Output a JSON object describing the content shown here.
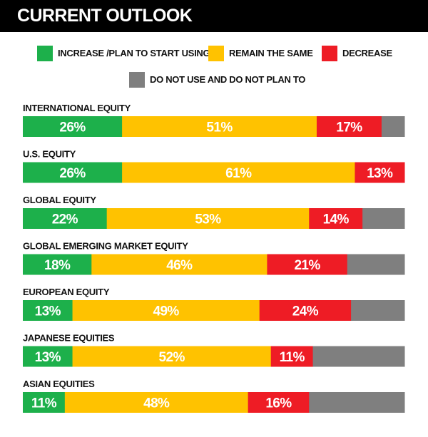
{
  "header": {
    "title": "CURRENT OUTLOOK"
  },
  "legend": [
    {
      "label": "INCREASE /PLAN TO START USING",
      "color": "#1DB04B"
    },
    {
      "label": "REMAIN THE SAME",
      "color": "#FFC200"
    },
    {
      "label": "DECREASE",
      "color": "#EE1C25"
    },
    {
      "label": "DO NOT USE AND DO NOT PLAN TO",
      "color": "#7F7F7F"
    }
  ],
  "chart_data": {
    "type": "bar",
    "orientation": "horizontal",
    "stacked": true,
    "title": "CURRENT OUTLOOK",
    "categories": [
      "INTERNATIONAL EQUITY",
      "U.S. EQUITY",
      "GLOBAL EQUITY",
      "GLOBAL EMERGING MARKET EQUITY",
      "EUROPEAN EQUITY",
      "JAPANESE EQUITIES",
      "ASIAN EQUITIES"
    ],
    "series": [
      {
        "name": "INCREASE /PLAN TO START USING",
        "color": "#1DB04B",
        "values": [
          26,
          26,
          22,
          18,
          13,
          13,
          11
        ]
      },
      {
        "name": "REMAIN THE SAME",
        "color": "#FFC200",
        "values": [
          51,
          61,
          53,
          46,
          49,
          52,
          48
        ]
      },
      {
        "name": "DECREASE",
        "color": "#EE1C25",
        "values": [
          17,
          13,
          14,
          21,
          24,
          11,
          16
        ]
      },
      {
        "name": "DO NOT USE AND DO NOT PLAN TO",
        "color": "#7F7F7F",
        "values": [
          6,
          0,
          11,
          15,
          14,
          24,
          25
        ]
      }
    ],
    "value_suffix": "%",
    "xlim": [
      0,
      100
    ],
    "xlabel": "",
    "ylabel": "",
    "grid": false,
    "legend_position": "top"
  }
}
